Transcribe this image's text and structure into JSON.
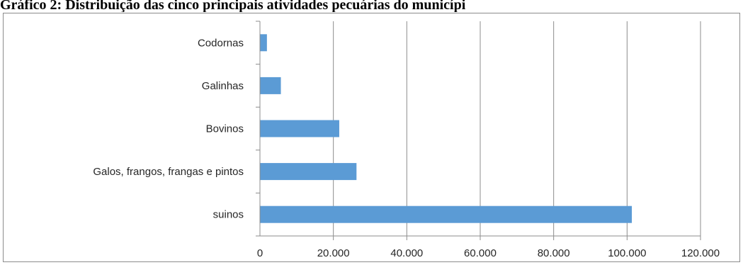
{
  "chart_data": {
    "type": "bar",
    "orientation": "horizontal",
    "title": "Gráfico 2: Distribuição das cinco principais atividades pecuárias do municípi",
    "categories": [
      "suinos",
      "Galos, frangos, frangas e pintos",
      "Bovinos",
      "Galinhas",
      "Codornas"
    ],
    "values": [
      101300,
      26300,
      21600,
      5700,
      1900
    ],
    "xlim": [
      0,
      120000
    ],
    "x_ticks": [
      0,
      20000,
      40000,
      60000,
      80000,
      100000,
      120000
    ],
    "x_tick_labels": [
      "0",
      "20.000",
      "40.000",
      "60.000",
      "80.000",
      "100.000",
      "120.000"
    ],
    "grid": true,
    "legend": "none",
    "bar_color": "#5B9BD5",
    "grid_color": "#8C8C8C"
  }
}
